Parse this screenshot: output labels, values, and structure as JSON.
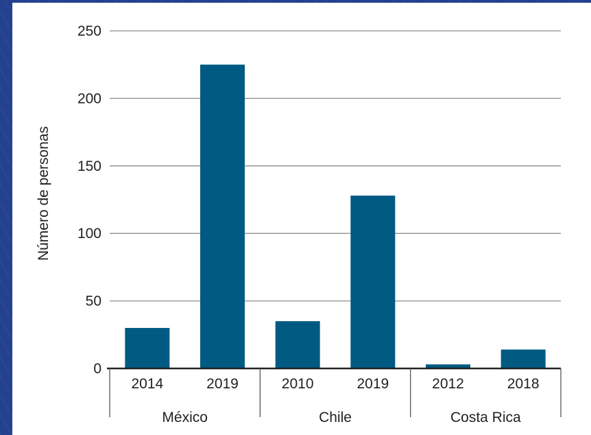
{
  "chart_data": {
    "type": "bar",
    "ylabel": "Número de personas",
    "ylim": [
      0,
      250
    ],
    "yticks": [
      0,
      50,
      100,
      150,
      200,
      250
    ],
    "grid": true,
    "color": "#005a82",
    "groups": [
      {
        "name": "México",
        "categories": [
          "2014",
          "2019"
        ],
        "values": [
          30,
          225
        ]
      },
      {
        "name": "Chile",
        "categories": [
          "2010",
          "2019"
        ],
        "values": [
          35,
          128
        ]
      },
      {
        "name": "Costa Rica",
        "categories": [
          "2012",
          "2018"
        ],
        "values": [
          3,
          14
        ]
      }
    ]
  }
}
